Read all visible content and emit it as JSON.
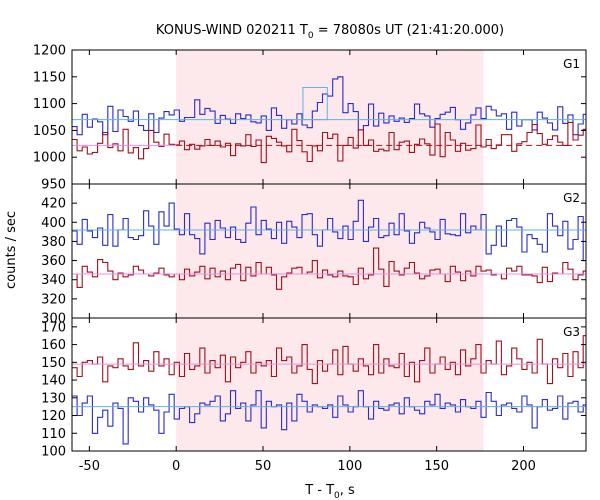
{
  "chart_data": {
    "type": "line",
    "title_main": "KONUS-WIND 020211 T",
    "title_sub": "0",
    "title_rest": " = 78080s UT (21:41:20.000)",
    "xlabel_main": "T - T",
    "xlabel_sub": "0",
    "xlabel_rest": ", s",
    "ylabel": "counts / sec",
    "xlim": [
      -60,
      236
    ],
    "xticks": [
      -50,
      0,
      50,
      100,
      150,
      200
    ],
    "shaded_interval": [
      0,
      177
    ],
    "colors": {
      "blue": "#2b2bcc",
      "red": "#a0101c",
      "cyan": "#5ab4e8",
      "pink": "#e88ee0",
      "shade": "#fde8ec",
      "dashed": "#a0101c"
    },
    "panels": [
      {
        "label": "G1",
        "ylim": [
          950,
          1200
        ],
        "yticks": [
          950,
          1000,
          1050,
          1100,
          1150,
          1200
        ],
        "blue_background": 1070,
        "red_background": 1022,
        "blue_peak_x": [
          73,
          87
        ],
        "blue_peak_value": 1130,
        "series": [
          {
            "color": "blue",
            "start": -60,
            "step": 2.944,
            "values": [
              1057,
              1042,
              1080,
              1056,
              1071,
              1066,
              1042,
              1095,
              1048,
              1088,
              1076,
              1067,
              1086,
              1059,
              1050,
              1081,
              1046,
              1073,
              1085,
              1079,
              1088,
              1067,
              1074,
              1074,
              1107,
              1080,
              1091,
              1086,
              1063,
              1078,
              1071,
              1063,
              1081,
              1072,
              1079,
              1066,
              1064,
              1077,
              1050,
              1092,
              1078,
              1054,
              1070,
              1062,
              1081,
              1060,
              1055,
              1086,
              1102,
              1118,
              1114,
              1146,
              1150,
              1083,
              1100,
              1085,
              1051,
              1059,
              1099,
              1058,
              1082,
              1064,
              1077,
              1067,
              1073,
              1065,
              1072,
              1099,
              1081,
              1077,
              1056,
              1072,
              1080,
              1084,
              1093,
              1070,
              1052,
              1064,
              1079,
              1092,
              1072,
              1095,
              1088,
              1077,
              1081,
              1052,
              1084,
              1058,
              1070,
              1070,
              1051,
              1084,
              1073,
              1064,
              1051,
              1094,
              1063,
              1079,
              1042,
              1062,
              1080
            ]
          },
          {
            "color": "red",
            "start": -60,
            "step": 2.944,
            "values": [
              1033,
              1012,
              1019,
              1006,
              1009,
              1026,
              1046,
              1018,
              1025,
              1012,
              1052,
              1008,
              1018,
              997,
              1016,
              1050,
              1028,
              1020,
              1043,
              1024,
              1023,
              1030,
              1014,
              1024,
              1015,
              1021,
              1033,
              1022,
              1030,
              1019,
              1026,
              1003,
              1025,
              1021,
              1042,
              1020,
              1032,
              990,
              1039,
              1035,
              1028,
              1021,
              1010,
              1052,
              1031,
              1010,
              992,
              1021,
              1012,
              1046,
              1035,
              1043,
              993,
              1022,
              1037,
              1017,
              1051,
              1022,
              1032,
              1011,
              1015,
              1012,
              1046,
              1014,
              1028,
              1030,
              1009,
              1024,
              1034,
              1025,
              1004,
              1062,
              1001,
              1046,
              1032,
              1011,
              1026,
              1013,
              1016,
              1060,
              1019,
              1033,
              1016,
              1023,
              1042,
              1042,
              1011,
              1025,
              1029,
              1046,
              1061,
              1044,
              1024,
              1033,
              1040,
              1028,
              1022,
              1065,
              1032,
              1041,
              1052
            ]
          }
        ]
      },
      {
        "label": "G2",
        "ylim": [
          300,
          440
        ],
        "yticks": [
          300,
          320,
          340,
          360,
          380,
          400,
          420
        ],
        "blue_background": 392,
        "red_background": 346,
        "series": [
          {
            "color": "blue",
            "start": -60,
            "step": 2.944,
            "values": [
              391,
              377,
              403,
              391,
              384,
              394,
              376,
              408,
              375,
              392,
              404,
              384,
              382,
              386,
              412,
              396,
              377,
              411,
              396,
              420,
              393,
              387,
              409,
              387,
              383,
              367,
              399,
              382,
              402,
              394,
              384,
              395,
              382,
              379,
              399,
              416,
              387,
              402,
              393,
              383,
              400,
              378,
              401,
              395,
              384,
              408,
              409,
              387,
              375,
              392,
              404,
              390,
              383,
              396,
              382,
              401,
              423,
              380,
              395,
              404,
              384,
              386,
              399,
              387,
              409,
              391,
              378,
              389,
              400,
              394,
              390,
              382,
              403,
              388,
              387,
              386,
              409,
              389,
              396,
              392,
              408,
              367,
              376,
              396,
              375,
              402,
              404,
              395,
              369,
              387,
              383,
              377,
              369,
              409,
              396,
              386,
              401,
              372,
              382,
              406,
              360
            ]
          },
          {
            "color": "red",
            "start": -60,
            "step": 2.944,
            "values": [
              346,
              332,
              354,
              348,
              343,
              361,
              358,
              349,
              340,
              347,
              343,
              345,
              354,
              350,
              346,
              344,
              347,
              352,
              345,
              343,
              346,
              340,
              351,
              344,
              348,
              354,
              341,
              352,
              343,
              349,
              340,
              352,
              356,
              339,
              353,
              344,
              358,
              346,
              353,
              345,
              330,
              343,
              347,
              352,
              353,
              346,
              348,
              360,
              342,
              350,
              345,
              343,
              349,
              344,
              343,
              335,
              352,
              341,
              345,
              373,
              351,
              333,
              359,
              349,
              345,
              352,
              358,
              347,
              341,
              344,
              350,
              351,
              346,
              338,
              354,
              348,
              339,
              349,
              344,
              354,
              349,
              350,
              345,
              346,
              341,
              352,
              349,
              354,
              345,
              345,
              344,
              337,
              353,
              338,
              347,
              346,
              358,
              351,
              340,
              345,
              349
            ]
          }
        ]
      },
      {
        "label": "G3",
        "ylim": [
          100,
          175
        ],
        "yticks": [
          100,
          110,
          120,
          130,
          140,
          150,
          160,
          170
        ],
        "blue_background": 125,
        "red_background": 149,
        "series": [
          {
            "color": "blue",
            "start": -60,
            "step": 2.944,
            "values": [
              131,
              120,
              127,
              131,
              110,
              119,
              123,
              114,
              127,
              124,
              104,
              130,
              128,
              122,
              130,
              126,
              123,
              110,
              122,
              132,
              118,
              124,
              125,
              116,
              121,
              127,
              126,
              128,
              131,
              117,
              121,
              134,
              124,
              127,
              117,
              126,
              134,
              113,
              128,
              125,
              126,
              112,
              127,
              117,
              132,
              128,
              122,
              126,
              125,
              124,
              126,
              119,
              131,
              126,
              122,
              125,
              134,
              125,
              118,
              128,
              124,
              123,
              126,
              127,
              121,
              130,
              125,
              123,
              121,
              128,
              126,
              132,
              124,
              127,
              126,
              122,
              129,
              125,
              124,
              128,
              119,
              133,
              128,
              120,
              126,
              127,
              124,
              122,
              131,
              126,
              113,
              125,
              129,
              123,
              124,
              131,
              118,
              127,
              128,
              122,
              126
            ]
          },
          {
            "color": "red",
            "start": -60,
            "step": 2.944,
            "values": [
              147,
              142,
              150,
              151,
              149,
              153,
              139,
              148,
              147,
              152,
              148,
              146,
              161,
              148,
              151,
              145,
              156,
              148,
              152,
              143,
              150,
              142,
              155,
              146,
              148,
              158,
              144,
              151,
              147,
              154,
              139,
              153,
              147,
              150,
              156,
              144,
              150,
              148,
              151,
              142,
              158,
              151,
              153,
              144,
              148,
              160,
              146,
              138,
              151,
              145,
              149,
              157,
              143,
              159,
              149,
              145,
              152,
              148,
              143,
              160,
              144,
              152,
              148,
              147,
              155,
              142,
              150,
              139,
              151,
              158,
              144,
              149,
              153,
              146,
              150,
              143,
              157,
              148,
              152,
              160,
              144,
              151,
              149,
              162,
              143,
              148,
              158,
              152,
              146,
              150,
              144,
              163,
              149,
              138,
              152,
              147,
              155,
              142,
              156,
              147,
              165
            ]
          }
        ]
      }
    ]
  }
}
